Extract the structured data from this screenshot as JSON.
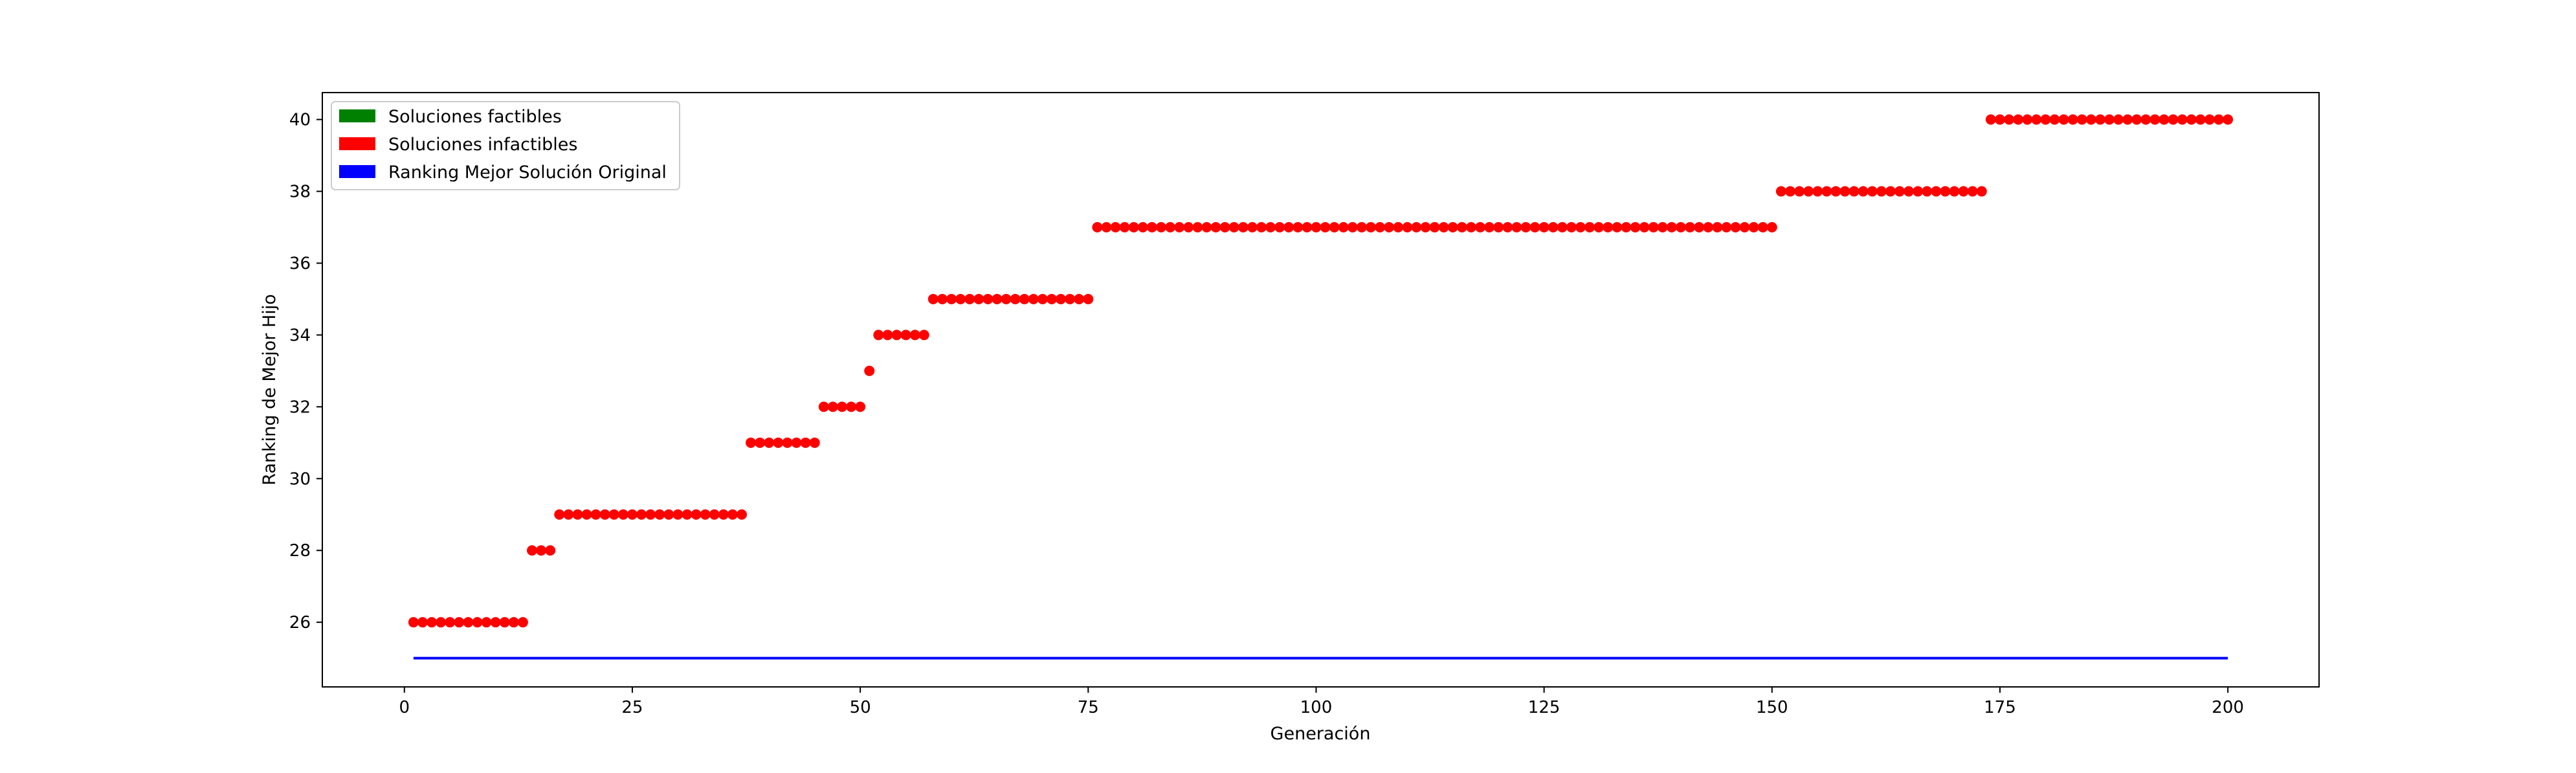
{
  "chart_data": {
    "type": "scatter",
    "xlabel": "Generación",
    "ylabel": "Ranking de Mejor Hijo",
    "xlim": [
      -9,
      210
    ],
    "ylim": [
      24.2,
      40.75
    ],
    "xticks": [
      0,
      25,
      50,
      75,
      100,
      125,
      150,
      175,
      200
    ],
    "yticks": [
      26,
      28,
      30,
      32,
      34,
      36,
      38,
      40
    ],
    "grid": false,
    "legend_position": "top-left",
    "legend": [
      {
        "label": "Soluciones factibles",
        "color": "#008000"
      },
      {
        "label": "Soluciones infactibles",
        "color": "#ff0000"
      },
      {
        "label": "Ranking Mejor Solución Original",
        "color": "#0000ff"
      }
    ],
    "series": [
      {
        "name": "Soluciones infactibles",
        "color": "#ff0000",
        "segments": [
          {
            "from": 1,
            "to": 13,
            "y": 26
          },
          {
            "from": 14,
            "to": 16,
            "y": 28
          },
          {
            "from": 17,
            "to": 37,
            "y": 29
          },
          {
            "from": 38,
            "to": 45,
            "y": 31
          },
          {
            "from": 46,
            "to": 50,
            "y": 32
          },
          {
            "from": 51,
            "to": 51,
            "y": 33
          },
          {
            "from": 52,
            "to": 57,
            "y": 34
          },
          {
            "from": 58,
            "to": 75,
            "y": 35
          },
          {
            "from": 76,
            "to": 150,
            "y": 37
          },
          {
            "from": 151,
            "to": 173,
            "y": 38
          },
          {
            "from": 174,
            "to": 200,
            "y": 40
          }
        ]
      },
      {
        "name": "Ranking Mejor Solución Original",
        "color": "#0000ff",
        "x": [
          1,
          200
        ],
        "y": [
          25,
          25
        ]
      }
    ]
  }
}
